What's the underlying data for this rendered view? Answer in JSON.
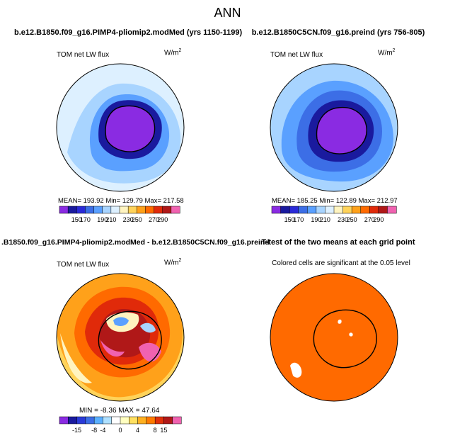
{
  "figure_title": "ANN",
  "colors": {
    "abs_scale": [
      "#8a2be2",
      "#1a1a9e",
      "#2a2ad8",
      "#3c6ee6",
      "#5aa0ff",
      "#a8d4ff",
      "#ddf0ff",
      "#fff4c0",
      "#ffd35a",
      "#ffa11a",
      "#ff6a00",
      "#e02a0a",
      "#b01818",
      "#f062b0"
    ],
    "diff_scale": [
      "#8a2be2",
      "#1a1a9e",
      "#2a3ad8",
      "#3c6ee6",
      "#5ab0ff",
      "#aee0ff",
      "#ffffff",
      "#ffffc0",
      "#ffe060",
      "#ffb020",
      "#ff7a00",
      "#e0300a",
      "#b01818",
      "#f062b0"
    ]
  },
  "chart_data": [
    {
      "type": "heatmap",
      "projection": "south polar stereographic",
      "title": "b.e12.B1850.f09_g16.PIMP4-pliomip2.modMed (yrs 1150-1199)",
      "variable": "TOM net LW flux",
      "units_base": "W/m",
      "units_exp": "2",
      "stats": "MEAN= 193.92  Min= 129.79  Max= 217.58",
      "mean": 193.92,
      "min": 129.79,
      "max": 217.58,
      "colorbar_ticks": [
        "150",
        "170",
        "190",
        "210",
        "230",
        "250",
        "270",
        "290"
      ]
    },
    {
      "type": "heatmap",
      "projection": "south polar stereographic",
      "title": "b.e12.B1850C5CN.f09_g16.preind (yrs 756-805)",
      "variable": "TOM net LW flux",
      "units_base": "W/m",
      "units_exp": "2",
      "stats": "MEAN= 185.25  Min= 122.89  Max= 212.97",
      "mean": 185.25,
      "min": 122.89,
      "max": 212.97,
      "colorbar_ticks": [
        "150",
        "170",
        "190",
        "210",
        "230",
        "250",
        "270",
        "290"
      ]
    },
    {
      "type": "heatmap",
      "projection": "south polar stereographic",
      "title": ".B1850.f09_g16.PIMP4-pliomip2.modMed - b.e12.B1850C5CN.f09_g16.preind",
      "variable": "TOM net LW flux",
      "units_base": "W/m",
      "units_exp": "2",
      "stats": "MIN =  -8.36  MAX =   47.64",
      "min": -8.36,
      "max": 47.64,
      "colorbar_ticks": [
        "-15",
        "-8",
        "-4",
        "0",
        "4",
        "8",
        "15"
      ]
    },
    {
      "type": "heatmap",
      "projection": "south polar stereographic",
      "title": "T-test of the two means at each grid point",
      "subtitle": "Colored cells are significant at the 0.05 level"
    }
  ]
}
